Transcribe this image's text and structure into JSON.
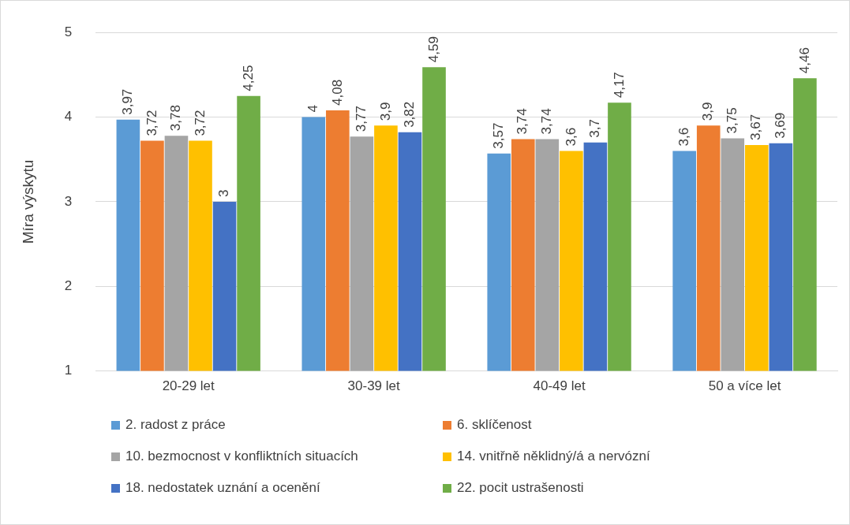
{
  "chart_data": {
    "type": "bar",
    "ylabel": "Míra výskytu",
    "categories": [
      "20-29 let",
      "30-39 let",
      "40-49 let",
      "50 a více let"
    ],
    "series": [
      {
        "name": "2. radost z práce",
        "color": "#5b9bd5",
        "values": [
          3.97,
          4,
          3.57,
          3.6
        ],
        "value_labels": [
          "3,97",
          "4",
          "3,57",
          "3,6"
        ]
      },
      {
        "name": "6. sklíčenost",
        "color": "#ed7d31",
        "values": [
          3.72,
          4.08,
          3.74,
          3.9
        ],
        "value_labels": [
          "3,72",
          "4,08",
          "3,74",
          "3,9"
        ]
      },
      {
        "name": "10. bezmocnost v konfliktních situacích",
        "color": "#a5a5a5",
        "values": [
          3.78,
          3.77,
          3.74,
          3.75
        ],
        "value_labels": [
          "3,78",
          "3,77",
          "3,74",
          "3,75"
        ]
      },
      {
        "name": "14. vnitřně něklidný/á a nervózní",
        "color": "#ffc000",
        "values": [
          3.72,
          3.9,
          3.6,
          3.67
        ],
        "value_labels": [
          "3,72",
          "3,9",
          "3,6",
          "3,67"
        ]
      },
      {
        "name": "18. nedostatek uznání a ocenění",
        "color": "#4472c4",
        "values": [
          3,
          3.82,
          3.7,
          3.69
        ],
        "value_labels": [
          "3",
          "3,82",
          "3,7",
          "3,69"
        ]
      },
      {
        "name": "22. pocit ustrašenosti",
        "color": "#70ad47",
        "values": [
          4.25,
          4.59,
          4.17,
          4.46
        ],
        "value_labels": [
          "4,25",
          "4,59",
          "4,17",
          "4,46"
        ]
      }
    ],
    "ylim": [
      1,
      5
    ],
    "yticks": [
      1,
      2,
      3,
      4,
      5
    ],
    "grid": "y",
    "legend": "bottom"
  }
}
